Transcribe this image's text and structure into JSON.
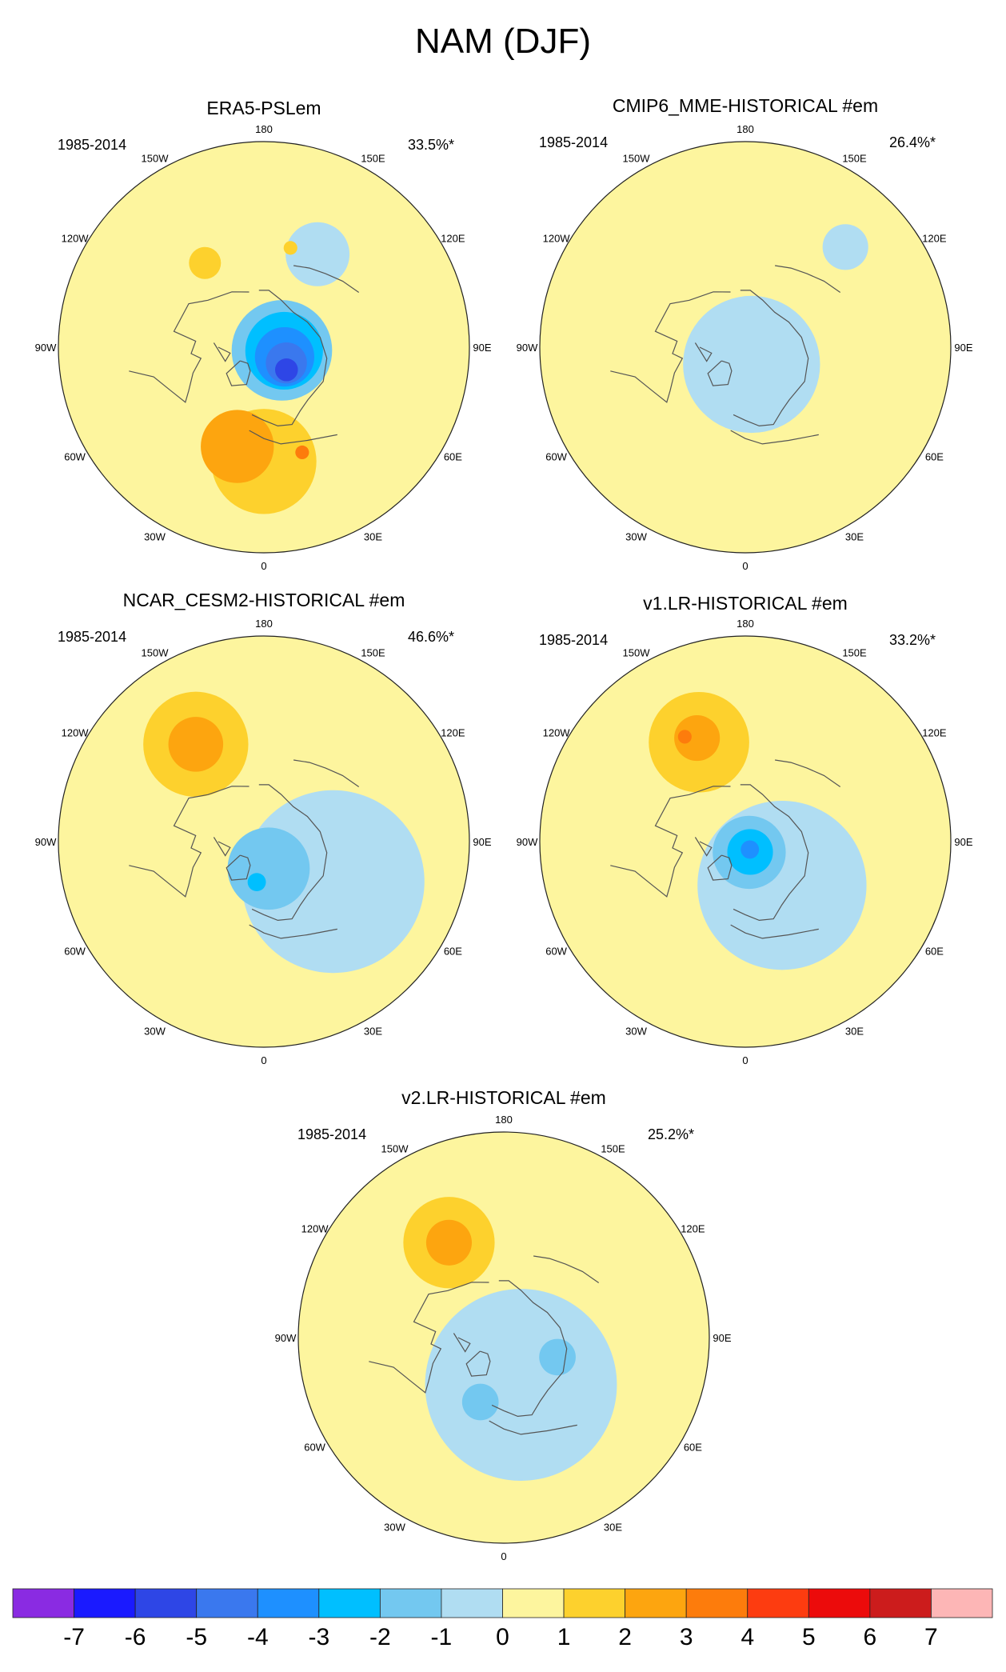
{
  "figure": {
    "title": "NAM (DJF)"
  },
  "chart_data": {
    "type": "polar-contour-map",
    "panels": [
      {
        "title": "ERA5-PSLem",
        "period": "1985-2014",
        "variance": "33.5%*",
        "blobs": [
          {
            "lon": 150,
            "colat": 47,
            "r": 14,
            "level": -1
          },
          {
            "lon": 80,
            "colat": 8,
            "r": 22,
            "level": -2
          },
          {
            "lon": 80,
            "colat": 9,
            "r": 17,
            "level": -3
          },
          {
            "lon": 65,
            "colat": 10,
            "r": 13,
            "level": -4
          },
          {
            "lon": 55,
            "colat": 12,
            "r": 9,
            "level": -5
          },
          {
            "lon": 45,
            "colat": 14,
            "r": 5,
            "level": -6
          },
          {
            "lon": 0,
            "colat": 50,
            "r": 23,
            "level": 1
          },
          {
            "lon": -15,
            "colat": 45,
            "r": 16,
            "level": 2
          },
          {
            "lon": 20,
            "colat": 49,
            "r": 3,
            "level": 3
          },
          {
            "lon": -145,
            "colat": 45,
            "r": 7,
            "level": 1
          },
          {
            "lon": 165,
            "colat": 45,
            "r": 3,
            "level": 1
          }
        ]
      },
      {
        "title": "CMIP6_MME-HISTORICAL  #em",
        "period": "1985-2014",
        "variance": "26.4%*",
        "blobs": [
          {
            "lon": 20,
            "colat": 8,
            "r": 30,
            "level": -1
          },
          {
            "lon": 135,
            "colat": 62,
            "r": 10,
            "level": -1
          }
        ]
      },
      {
        "title": "NCAR_CESM2-HISTORICAL  #em",
        "period": "1985-2014",
        "variance": "46.6%*",
        "blobs": [
          {
            "lon": 60,
            "colat": 35,
            "r": 40,
            "level": -1
          },
          {
            "lon": 10,
            "colat": 12,
            "r": 18,
            "level": -2
          },
          {
            "lon": -10,
            "colat": 18,
            "r": 4,
            "level": -3
          },
          {
            "lon": -145,
            "colat": 52,
            "r": 23,
            "level": 1
          },
          {
            "lon": -145,
            "colat": 52,
            "r": 12,
            "level": 2
          }
        ]
      },
      {
        "title": "v1.LR-HISTORICAL  #em",
        "period": "1985-2014",
        "variance": "33.2%*",
        "blobs": [
          {
            "lon": 40,
            "colat": 25,
            "r": 37,
            "level": -1
          },
          {
            "lon": 20,
            "colat": 5,
            "r": 16,
            "level": -2
          },
          {
            "lon": 25,
            "colat": 5,
            "r": 10,
            "level": -3
          },
          {
            "lon": 30,
            "colat": 4,
            "r": 4,
            "level": -4
          },
          {
            "lon": -155,
            "colat": 48,
            "r": 22,
            "level": 1
          },
          {
            "lon": -155,
            "colat": 50,
            "r": 10,
            "level": 2
          },
          {
            "lon": -150,
            "colat": 53,
            "r": 3,
            "level": 3
          }
        ]
      },
      {
        "title": "v2.LR-HISTORICAL  #em",
        "period": "1985-2014",
        "variance": "25.2%*",
        "blobs": [
          {
            "lon": 20,
            "colat": 22,
            "r": 42,
            "level": -1
          },
          {
            "lon": -20,
            "colat": 30,
            "r": 8,
            "level": -2
          },
          {
            "lon": 70,
            "colat": 25,
            "r": 8,
            "level": -2
          },
          {
            "lon": -150,
            "colat": 48,
            "r": 20,
            "level": 1
          },
          {
            "lon": -150,
            "colat": 48,
            "r": 10,
            "level": 2
          }
        ]
      }
    ],
    "lon_labels": [
      "180",
      "150E",
      "120E",
      "90E",
      "60E",
      "30E",
      "0",
      "30W",
      "60W",
      "90W",
      "120W",
      "150W"
    ],
    "colorbar": {
      "labels": [
        "-7",
        "-6",
        "-5",
        "-4",
        "-3",
        "-2",
        "-1",
        "0",
        "1",
        "2",
        "3",
        "4",
        "5",
        "6",
        "7"
      ],
      "colors": [
        "#8a2be2",
        "#1a1aff",
        "#2e46e6",
        "#3a78ee",
        "#1e90ff",
        "#00bfff",
        "#73c8f0",
        "#b0ddf2",
        "#fdf59e",
        "#fdd12d",
        "#fda50f",
        "#fd7c0c",
        "#fd3c10",
        "#ec0b0b",
        "#cc1c1c",
        "#fdb6b6"
      ]
    }
  }
}
